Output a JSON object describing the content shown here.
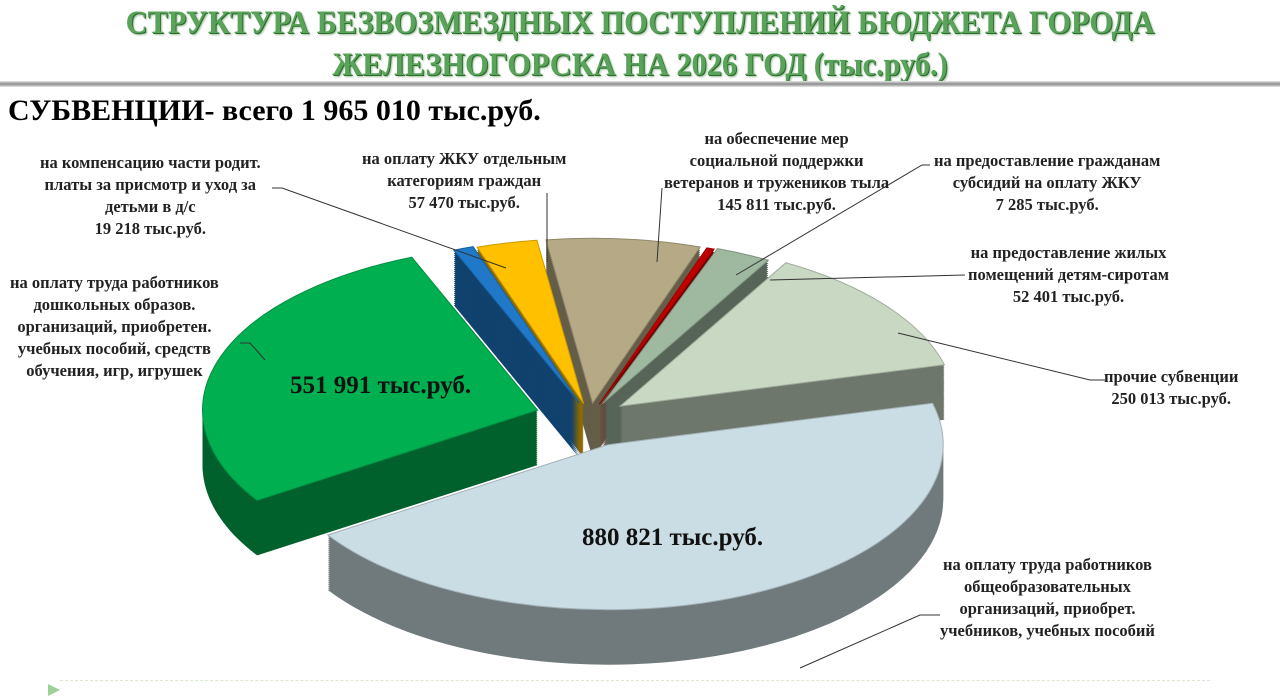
{
  "header": {
    "title_line1": "СТРУКТУРА БЕЗВОЗМЕЗДНЫХ ПОСТУПЛЕНИЙ БЮДЖЕТА ГОРОДА",
    "title_line2": "ЖЕЛЕЗНОГОРСКА  НА 2026 ГОД (тыс.руб.)",
    "subtitle": "СУБВЕНЦИИ- всего 1 965 010 тыс.руб."
  },
  "chart_data": {
    "type": "pie",
    "style": "3d-exploded",
    "unit": "тыс.руб.",
    "total": 1965010,
    "slices": [
      {
        "label": "на обеспечение мер социальной поддержки ветеранов и тружеников тыла",
        "value": 145811,
        "value_label": "145 811 тыс.руб.",
        "color": "#b5aa85"
      },
      {
        "label": "на предоставление гражданам субсидий на оплату ЖКУ",
        "value": 7285,
        "value_label": "7 285 тыс.руб.",
        "color": "#c00000"
      },
      {
        "label": "на предоставление жилых помещений детям-сиротам",
        "value": 52401,
        "value_label": "52 401 тыс.руб.",
        "color": "#9fb8a0"
      },
      {
        "label": "прочие субвенции",
        "value": 250013,
        "value_label": "250 013 тыс.руб.",
        "color": "#c8d8c2"
      },
      {
        "label": "на оплату труда работников общеобразовательных организаций, приобрет. учебников, учебных пособий",
        "value": 880821,
        "value_label": "880 821 тыс.руб.",
        "color": "#cbdde4"
      },
      {
        "label": "на оплату труда работников дошкольных образов. организаций, приобретен. учебных пособий, средств обучения, игр, игрушек",
        "value": 551991,
        "value_label": "551 991 тыс.руб.",
        "color": "#00b050"
      },
      {
        "label": "на компенсацию части родит. платы за присмотр и уход за детьми в д/с",
        "value": 19218,
        "value_label": "19 218 тыс.руб.",
        "color": "#1f78c8"
      },
      {
        "label": "на оплату ЖКУ отдельным категориям граждан",
        "value": 57470,
        "value_label": "57 470 тыс.руб.",
        "color": "#ffc000"
      }
    ]
  },
  "labels": {
    "veterans": [
      "на обеспечение мер",
      "социальной поддержки",
      "ветеранов и тружеников тыла",
      "145 811 тыс.руб."
    ],
    "subsidies": [
      "на предоставление гражданам",
      "субсидий на оплату ЖКУ",
      "7 285 тыс.руб."
    ],
    "orphans": [
      "на предоставление жилых",
      "помещений детям-сиротам",
      "52 401 тыс.руб."
    ],
    "other": [
      "прочие субвенции",
      "250 013 тыс.руб."
    ],
    "schools": [
      "на оплату труда работников",
      "общеобразовательных",
      "организаций, приобрет.",
      "учебников, учебных пособий"
    ],
    "schools_value": "880 821 тыс.руб.",
    "preschool": [
      "на оплату труда работников",
      "дошкольных образов.",
      "организаций, приобретен.",
      "учебных пособий, средств",
      "обучения, игр, игрушек"
    ],
    "preschool_value": "551 991 тыс.руб.",
    "compensation": [
      "на компенсацию части родит.",
      "платы за присмотр и уход за",
      "детьми в д/с",
      "19 218 тыс.руб."
    ],
    "housing": [
      "на оплату ЖКУ отдельным",
      "категориям граждан",
      "57 470 тыс.руб."
    ]
  }
}
